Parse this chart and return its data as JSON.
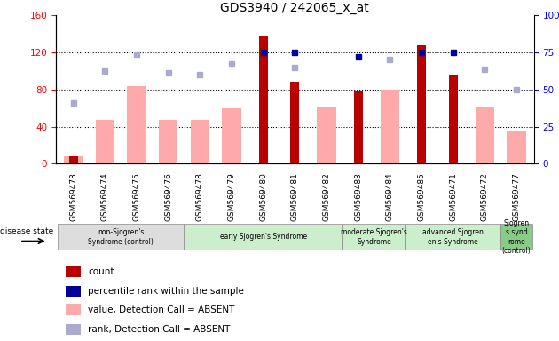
{
  "title": "GDS3940 / 242065_x_at",
  "samples": [
    "GSM569473",
    "GSM569474",
    "GSM569475",
    "GSM569476",
    "GSM569478",
    "GSM569479",
    "GSM569480",
    "GSM569481",
    "GSM569482",
    "GSM569483",
    "GSM569484",
    "GSM569485",
    "GSM569471",
    "GSM569472",
    "GSM569477"
  ],
  "count": [
    8,
    0,
    0,
    0,
    0,
    0,
    138,
    88,
    0,
    78,
    0,
    128,
    95,
    0,
    0
  ],
  "value_absent": [
    8,
    47,
    84,
    47,
    47,
    60,
    0,
    0,
    62,
    0,
    80,
    0,
    0,
    62,
    36
  ],
  "percentile_rank": [
    null,
    null,
    null,
    null,
    null,
    null,
    120,
    120,
    null,
    115,
    null,
    120,
    120,
    null,
    null
  ],
  "rank_absent": [
    65,
    100,
    118,
    98,
    96,
    108,
    null,
    104,
    null,
    null,
    112,
    null,
    null,
    102,
    80
  ],
  "ylim_left": [
    0,
    160
  ],
  "ylim_right": [
    0,
    100
  ],
  "yticks_left": [
    0,
    40,
    80,
    120,
    160
  ],
  "yticks_right": [
    0,
    25,
    50,
    75,
    100
  ],
  "color_count": "#bb0000",
  "color_value_absent": "#ffaaaa",
  "color_rank": "#000099",
  "color_rank_absent": "#aaaacc",
  "groups": [
    {
      "label": "non-Sjogren's\nSyndrome (control)",
      "start": 0,
      "end": 3,
      "color": "#dddddd"
    },
    {
      "label": "early Sjogren's Syndrome",
      "start": 4,
      "end": 8,
      "color": "#cceecc"
    },
    {
      "label": "moderate Sjogren's\nSyndrome",
      "start": 9,
      "end": 10,
      "color": "#cceecc"
    },
    {
      "label": "advanced Sjogren\nen's Syndrome",
      "start": 11,
      "end": 13,
      "color": "#cceecc"
    },
    {
      "label": "Sjogren\ns synd\nrome\n(control)",
      "start": 14,
      "end": 14,
      "color": "#88cc88"
    }
  ],
  "disease_state_label": "disease state",
  "legend_items": [
    {
      "label": "count",
      "color": "#bb0000"
    },
    {
      "label": "percentile rank within the sample",
      "color": "#000099"
    },
    {
      "label": "value, Detection Call = ABSENT",
      "color": "#ffaaaa"
    },
    {
      "label": "rank, Detection Call = ABSENT",
      "color": "#aaaacc"
    }
  ]
}
